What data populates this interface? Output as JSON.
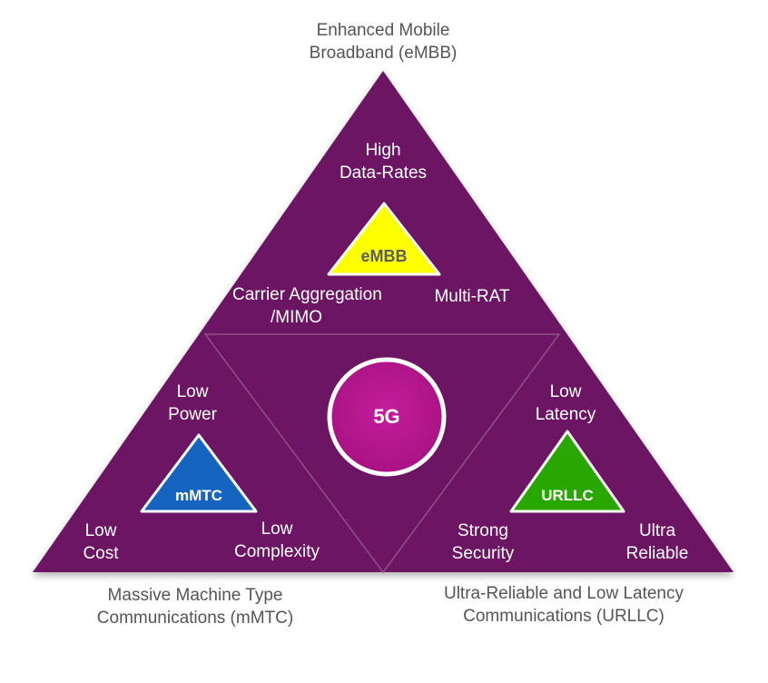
{
  "top_label": {
    "line1": "Enhanced Mobile",
    "line2": "Broadband (eMBB)"
  },
  "bottom_left_label": {
    "line1": "Massive Machine Type",
    "line2": "Communications (mMTC)"
  },
  "bottom_right_label": {
    "line1": "Ultra-Reliable and Low Latency",
    "line2": "Communications (URLLC)"
  },
  "center": {
    "label": "5G",
    "color": "#b5178f"
  },
  "embb": {
    "badge": "eMBB",
    "color": "#ffff00",
    "feature_top": {
      "line1": "High",
      "line2": "Data-Rates"
    },
    "feature_left": {
      "line1": "Carrier Aggregation",
      "line2": "/MIMO"
    },
    "feature_right": "Multi-RAT"
  },
  "mmtc": {
    "badge": "mMTC",
    "color": "#1565c0",
    "feature_top": {
      "line1": "Low",
      "line2": "Power"
    },
    "feature_left": {
      "line1": "Low",
      "line2": "Cost"
    },
    "feature_right": {
      "line1": "Low",
      "line2": "Complexity"
    }
  },
  "urllc": {
    "badge": "URLLC",
    "color": "#2aa600",
    "feature_top": {
      "line1": "Low",
      "line2": "Latency"
    },
    "feature_left": {
      "line1": "Strong",
      "line2": "Security"
    },
    "feature_right": {
      "line1": "Ultra",
      "line2": "Reliable"
    }
  },
  "colors": {
    "triangle": "#6c1464",
    "lines": "#8f5088",
    "outline": "#ffffff"
  }
}
